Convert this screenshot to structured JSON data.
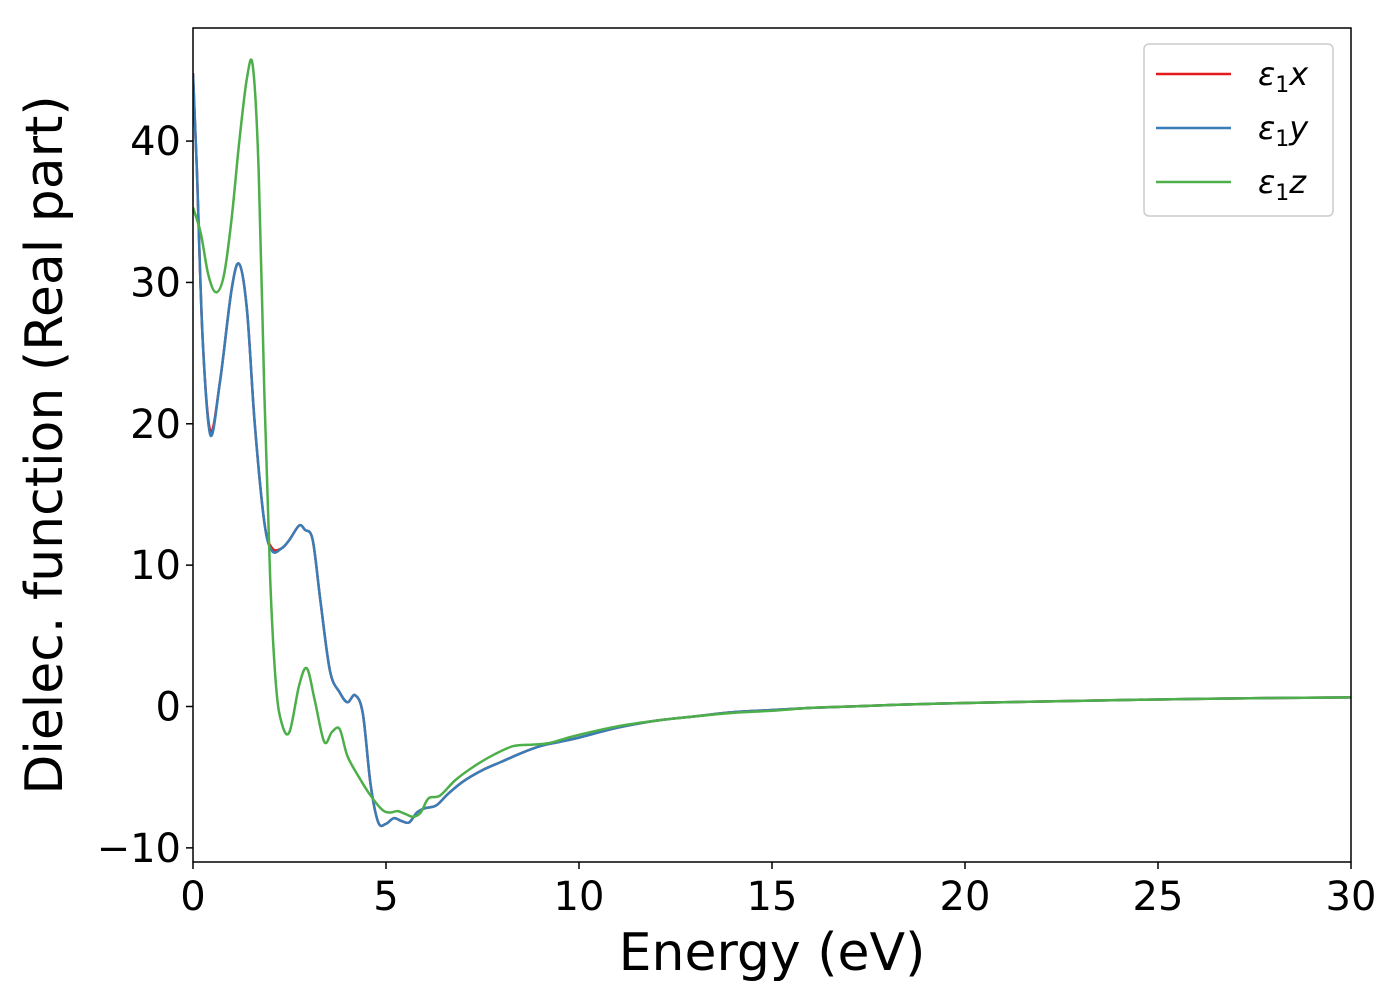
{
  "chart_data": {
    "type": "line",
    "xlabel": "Energy (eV)",
    "ylabel": "Dielec. function (Real part)",
    "xlim": [
      0,
      30
    ],
    "ylim": [
      -11,
      48
    ],
    "xticks": [
      0,
      5,
      10,
      15,
      20,
      25,
      30
    ],
    "yticks": [
      -10,
      0,
      10,
      20,
      30,
      40
    ],
    "ytick_labels": [
      "−10",
      "0",
      "10",
      "20",
      "30",
      "40"
    ],
    "grid": false,
    "legend_position": "top-right",
    "series": [
      {
        "name_main": "ε",
        "name_sub": "1",
        "name_suffix": "x",
        "color": "#e41a1c",
        "x": [
          0,
          0.1,
          0.25,
          0.45,
          0.7,
          1.0,
          1.2,
          1.4,
          1.6,
          1.85,
          2.05,
          2.3,
          2.5,
          2.75,
          2.9,
          3.1,
          3.3,
          3.55,
          3.8,
          4.0,
          4.2,
          4.4,
          4.6,
          4.8,
          5.0,
          5.2,
          5.4,
          5.6,
          5.8,
          6.0,
          6.3,
          6.6,
          7.0,
          7.5,
          8.0,
          8.5,
          9.0,
          9.5,
          10,
          11,
          12,
          13,
          14,
          15,
          16,
          17,
          18,
          20,
          22,
          25,
          28,
          30
        ],
        "values": [
          44.8,
          38,
          26,
          19.5,
          23,
          29.5,
          31.3,
          28,
          20,
          13,
          11.2,
          11.2,
          11.8,
          12.8,
          12.5,
          11.8,
          7.5,
          2.5,
          1.0,
          0.3,
          0.8,
          -0.5,
          -5.5,
          -8.2,
          -8.3,
          -7.9,
          -8.1,
          -8.2,
          -7.5,
          -7.2,
          -7.0,
          -6.2,
          -5.3,
          -4.5,
          -3.9,
          -3.3,
          -2.8,
          -2.5,
          -2.2,
          -1.5,
          -1.0,
          -0.7,
          -0.4,
          -0.25,
          -0.1,
          0.0,
          0.1,
          0.25,
          0.35,
          0.5,
          0.6,
          0.65
        ]
      },
      {
        "name_main": "ε",
        "name_sub": "1",
        "name_suffix": "y",
        "color": "#377eb8",
        "x": [
          0,
          0.1,
          0.25,
          0.45,
          0.7,
          1.0,
          1.2,
          1.4,
          1.6,
          1.85,
          2.05,
          2.3,
          2.5,
          2.75,
          2.9,
          3.1,
          3.3,
          3.55,
          3.8,
          4.0,
          4.2,
          4.4,
          4.6,
          4.8,
          5.0,
          5.2,
          5.4,
          5.6,
          5.8,
          6.0,
          6.3,
          6.6,
          7.0,
          7.5,
          8.0,
          8.5,
          9.0,
          9.5,
          10,
          11,
          12,
          13,
          14,
          15,
          16,
          17,
          18,
          20,
          22,
          25,
          28,
          30
        ],
        "values": [
          44.8,
          38,
          26,
          19.2,
          23,
          29.5,
          31.3,
          28,
          20,
          13,
          11.0,
          11.2,
          11.8,
          12.8,
          12.5,
          11.8,
          7.5,
          2.5,
          1.0,
          0.3,
          0.8,
          -0.5,
          -5.5,
          -8.2,
          -8.3,
          -7.9,
          -8.1,
          -8.2,
          -7.5,
          -7.2,
          -7.0,
          -6.2,
          -5.3,
          -4.5,
          -3.9,
          -3.3,
          -2.8,
          -2.5,
          -2.2,
          -1.5,
          -1.0,
          -0.7,
          -0.4,
          -0.25,
          -0.1,
          0.0,
          0.1,
          0.25,
          0.35,
          0.5,
          0.6,
          0.65
        ]
      },
      {
        "name_main": "ε",
        "name_sub": "1",
        "name_suffix": "z",
        "color": "#4daf4a",
        "x": [
          0,
          0.2,
          0.4,
          0.6,
          0.8,
          1.0,
          1.2,
          1.4,
          1.55,
          1.7,
          1.85,
          2.0,
          2.15,
          2.3,
          2.5,
          2.75,
          2.95,
          3.15,
          3.4,
          3.6,
          3.8,
          4.0,
          4.3,
          4.6,
          4.9,
          5.1,
          5.3,
          5.5,
          5.7,
          5.9,
          6.1,
          6.4,
          6.8,
          7.3,
          7.8,
          8.3,
          8.8,
          9.2,
          9.6,
          10,
          11,
          12,
          13,
          14,
          15,
          16,
          17,
          18,
          20,
          22,
          25,
          28,
          30
        ],
        "values": [
          35.3,
          33.5,
          30.5,
          29.3,
          30.5,
          34.5,
          40.0,
          44.5,
          45.3,
          38,
          22,
          9,
          1.5,
          -1.2,
          -1.8,
          1.5,
          2.7,
          0.5,
          -2.5,
          -1.8,
          -1.6,
          -3.5,
          -5.0,
          -6.3,
          -7.3,
          -7.5,
          -7.4,
          -7.6,
          -7.8,
          -7.5,
          -6.5,
          -6.3,
          -5.2,
          -4.2,
          -3.4,
          -2.8,
          -2.7,
          -2.6,
          -2.3,
          -2.0,
          -1.4,
          -1.0,
          -0.7,
          -0.45,
          -0.3,
          -0.1,
          0.0,
          0.1,
          0.25,
          0.35,
          0.5,
          0.6,
          0.65
        ]
      }
    ]
  }
}
